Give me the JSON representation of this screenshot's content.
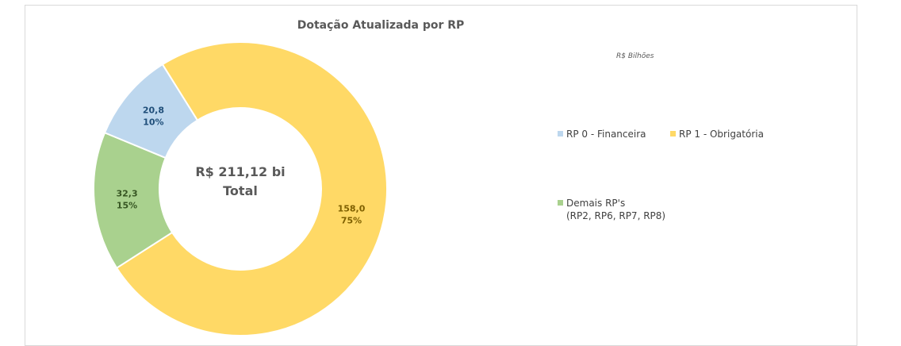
{
  "chart_data": {
    "type": "pie",
    "title": "Dotação Atualizada por RP",
    "unit_note": "R$ Bilhões",
    "center_label": [
      "R$ 211,12 bi",
      "Total"
    ],
    "slices": [
      {
        "name": "RP 1 - Obrigatória",
        "value": 158.0,
        "value_label": "158,0",
        "percent_label": "75%",
        "color": "#FFD966",
        "label_color": "#7F6000"
      },
      {
        "name": "Demais RP's\n(RP2, RP6, RP7, RP8)",
        "value": 32.3,
        "value_label": "32,3",
        "percent_label": "15%",
        "color": "#A9D18E",
        "label_color": "#375623"
      },
      {
        "name": "RP 0 - Financeira",
        "value": 20.8,
        "value_label": "20,8",
        "percent_label": "10%",
        "color": "#BDD7EE",
        "label_color": "#1F4E79"
      }
    ],
    "legend": [
      {
        "label": "RP 0 - Financeira",
        "color": "#BDD7EE"
      },
      {
        "label": "RP 1 - Obrigatória",
        "color": "#FFD966"
      },
      {
        "label": "Demais RP's\n(RP2, RP6, RP7, RP8)",
        "color": "#A9D18E"
      }
    ]
  }
}
